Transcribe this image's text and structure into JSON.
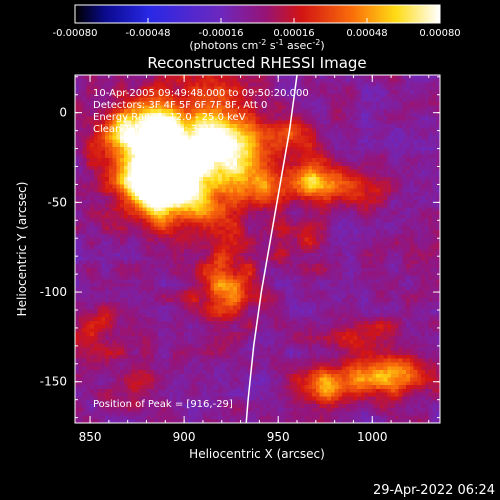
{
  "colorbar": {
    "ticks": [
      -0.0008,
      -0.00048,
      -0.00016,
      0.00016,
      0.00048,
      0.0008
    ],
    "tick_labels": [
      "-0.00080",
      "-0.00048",
      "-0.00016",
      "0.00016",
      "0.00048",
      "0.00080"
    ],
    "range": [
      -0.0008,
      0.0008
    ],
    "colormap": "blue-purple-red-yellow-white",
    "units_main": "(photons cm",
    "units_sup1": "-2",
    "units_mid1": " s",
    "units_sup2": "-1",
    "units_mid2": " asec",
    "units_sup3": "-2",
    "units_end": ")"
  },
  "annotations": {
    "time_range": "10-Apr-2005 09:49:48.000 to 09:50:20.000",
    "detectors": "Detectors: 3F 4F 5F 6F 7F 8F, Att 0",
    "energy_range": "Energy Range: 12.0 - 25.0 keV",
    "clean_counts": "Clean    Total counts: 331.",
    "peak": "Position of Peak = [916,-29]"
  },
  "timestamp": "29-Apr-2022 06:24",
  "chart_data": {
    "type": "heatmap",
    "title": "Reconstructed RHESSI Image",
    "xlabel": "Heliocentric X (arcsec)",
    "ylabel": "Heliocentric Y (arcsec)",
    "xlim": [
      842,
      1036
    ],
    "ylim": [
      -173,
      21
    ],
    "xticks": [
      850,
      900,
      950,
      1000
    ],
    "yticks": [
      0,
      -50,
      -100,
      -150
    ],
    "xtick_labels": [
      "850",
      "900",
      "950",
      "1000"
    ],
    "ytick_labels": [
      "0",
      "-50",
      "-100",
      "-150"
    ],
    "limb_curve": [
      [
        960,
        21
      ],
      [
        956,
        -10
      ],
      [
        951,
        -40
      ],
      [
        946,
        -70
      ],
      [
        941,
        -100
      ],
      [
        937,
        -130
      ],
      [
        934,
        -160
      ],
      [
        933,
        -173
      ]
    ],
    "sources": [
      {
        "x": 906,
        "y": -22,
        "amp": 0.001,
        "sx": 22,
        "sy": 22
      },
      {
        "x": 884,
        "y": -40,
        "amp": 0.0008,
        "sx": 14,
        "sy": 14
      },
      {
        "x": 873,
        "y": -12,
        "amp": 0.0006,
        "sx": 14,
        "sy": 11
      },
      {
        "x": 932,
        "y": -38,
        "amp": 0.0004,
        "sx": 10,
        "sy": 10
      },
      {
        "x": 975,
        "y": -40,
        "amp": 0.0006,
        "sx": 16,
        "sy": 8
      },
      {
        "x": 957,
        "y": -12,
        "amp": 0.0003,
        "sx": 10,
        "sy": 8
      },
      {
        "x": 920,
        "y": -97,
        "amp": 0.0004,
        "sx": 12,
        "sy": 16
      },
      {
        "x": 1008,
        "y": -147,
        "amp": 0.0005,
        "sx": 14,
        "sy": 9
      },
      {
        "x": 980,
        "y": -152,
        "amp": 0.0005,
        "sx": 12,
        "sy": 8
      },
      {
        "x": 996,
        "y": -125,
        "amp": 0.0003,
        "sx": 12,
        "sy": 7
      },
      {
        "x": 962,
        "y": -73,
        "amp": 0.0002,
        "sx": 10,
        "sy": 10
      },
      {
        "x": 855,
        "y": -123,
        "amp": 0.0002,
        "sx": 12,
        "sy": 12
      },
      {
        "x": 875,
        "y": -150,
        "amp": 0.0002,
        "sx": 10,
        "sy": 10
      }
    ]
  }
}
